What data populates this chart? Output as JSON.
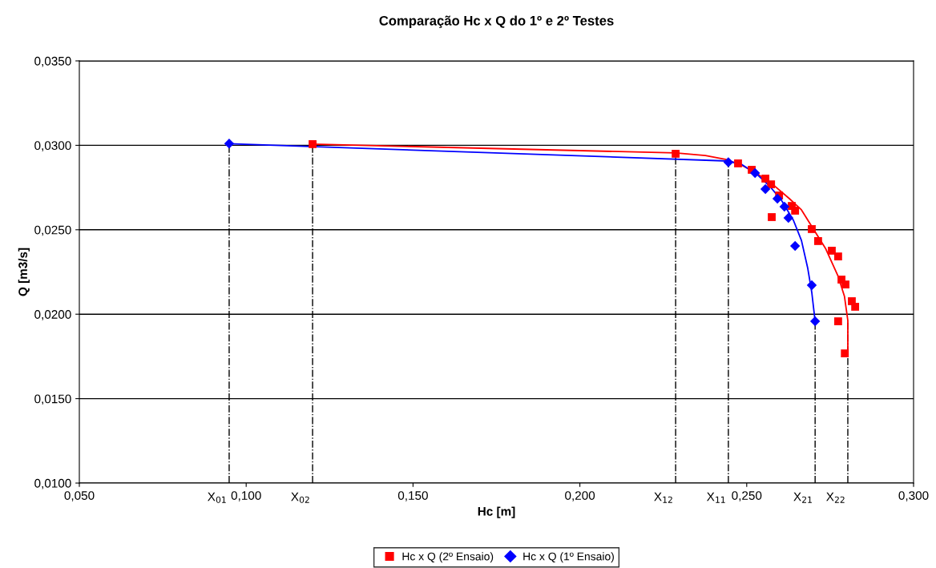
{
  "chart_data": {
    "type": "scatter",
    "title": "Comparação Hc x Q do 1º e 2º Testes",
    "xlabel": "Hc [m]",
    "ylabel": "Q [m3/s]",
    "xlim": [
      0.05,
      0.3
    ],
    "ylim": [
      0.01,
      0.035
    ],
    "xticks": [
      {
        "value": 0.05,
        "label": "0,050"
      },
      {
        "value": 0.1,
        "label": "0,100"
      },
      {
        "value": 0.15,
        "label": "0,150"
      },
      {
        "value": 0.2,
        "label": "0,200"
      },
      {
        "value": 0.25,
        "label": "0,250"
      },
      {
        "value": 0.3,
        "label": "0,300"
      }
    ],
    "yticks": [
      {
        "value": 0.01,
        "label": "0,0100"
      },
      {
        "value": 0.015,
        "label": "0,0150"
      },
      {
        "value": 0.02,
        "label": "0,0200"
      },
      {
        "value": 0.025,
        "label": "0,0250"
      },
      {
        "value": 0.03,
        "label": "0,0300"
      },
      {
        "value": 0.035,
        "label": "0,0350"
      }
    ],
    "grid": "y",
    "legend": "bottom",
    "series": [
      {
        "name": "Hc x Q (2º Ensaio)",
        "marker": "square",
        "color": "#ff0000",
        "x": [
          0.1199,
          0.2287,
          0.2474,
          0.2515,
          0.2556,
          0.2573,
          0.2597,
          0.2635,
          0.2645,
          0.2575,
          0.2695,
          0.2714,
          0.2755,
          0.2774,
          0.2784,
          0.2796,
          0.2815,
          0.2825,
          0.2774,
          0.2794
        ],
        "values": [
          0.03007,
          0.0295,
          0.02893,
          0.02855,
          0.02803,
          0.02769,
          0.02703,
          0.02641,
          0.02613,
          0.02575,
          0.02504,
          0.02433,
          0.02376,
          0.02342,
          0.02205,
          0.02176,
          0.02077,
          0.02044,
          0.01958,
          0.01768
        ]
      },
      {
        "name": "Hc x Q (1º Ensaio)",
        "marker": "diamond",
        "color": "#0000ff",
        "x": [
          0.0949,
          0.2445,
          0.2525,
          0.2556,
          0.2592,
          0.2613,
          0.2625,
          0.2645,
          0.2695,
          0.2705
        ],
        "values": [
          0.0301,
          0.029,
          0.02836,
          0.02741,
          0.02684,
          0.02637,
          0.0257,
          0.02404,
          0.02172,
          0.01958
        ]
      },
      {
        "type": "line",
        "color": "#ff0000",
        "x": [
          0.1199,
          0.2287,
          0.2376,
          0.2436,
          0.2484,
          0.2532,
          0.258,
          0.2628,
          0.2664,
          0.2697,
          0.2736,
          0.2774,
          0.2793,
          0.2803,
          0.2803
        ],
        "values": [
          0.03007,
          0.02955,
          0.0294,
          0.02917,
          0.02883,
          0.02831,
          0.02765,
          0.02684,
          0.02618,
          0.02513,
          0.0239,
          0.02224,
          0.02105,
          0.01963,
          0.01773
        ]
      },
      {
        "type": "line",
        "color": "#0000ff",
        "x": [
          0.0949,
          0.2445,
          0.2484,
          0.2532,
          0.2568,
          0.2604,
          0.264,
          0.2664,
          0.2683,
          0.2695,
          0.2705
        ],
        "values": [
          0.0301,
          0.02907,
          0.02888,
          0.02826,
          0.0276,
          0.02675,
          0.02556,
          0.02437,
          0.02271,
          0.02129,
          0.01958
        ]
      }
    ],
    "ref_lines": [
      {
        "axis": "x",
        "value": 0.0949,
        "label": "X$_{01}$",
        "line_style": "dashdot",
        "color": "#000000"
      },
      {
        "axis": "x",
        "value": 0.1199,
        "label": "X$_{02}$",
        "line_style": "dashdot",
        "color": "#000000"
      },
      {
        "axis": "x",
        "value": 0.2287,
        "label": "X$_{12}$",
        "line_style": "dashdot",
        "color": "#000000"
      },
      {
        "axis": "x",
        "value": 0.2445,
        "label": "X$_{11}$",
        "line_style": "dashdot",
        "color": "#000000"
      },
      {
        "axis": "x",
        "value": 0.2705,
        "label": "X$_{21}$",
        "line_style": "dashdot",
        "color": "#000000"
      },
      {
        "axis": "x",
        "value": 0.2803,
        "label": "X$_{22}$",
        "line_style": "dashdot",
        "color": "#000000"
      }
    ]
  }
}
